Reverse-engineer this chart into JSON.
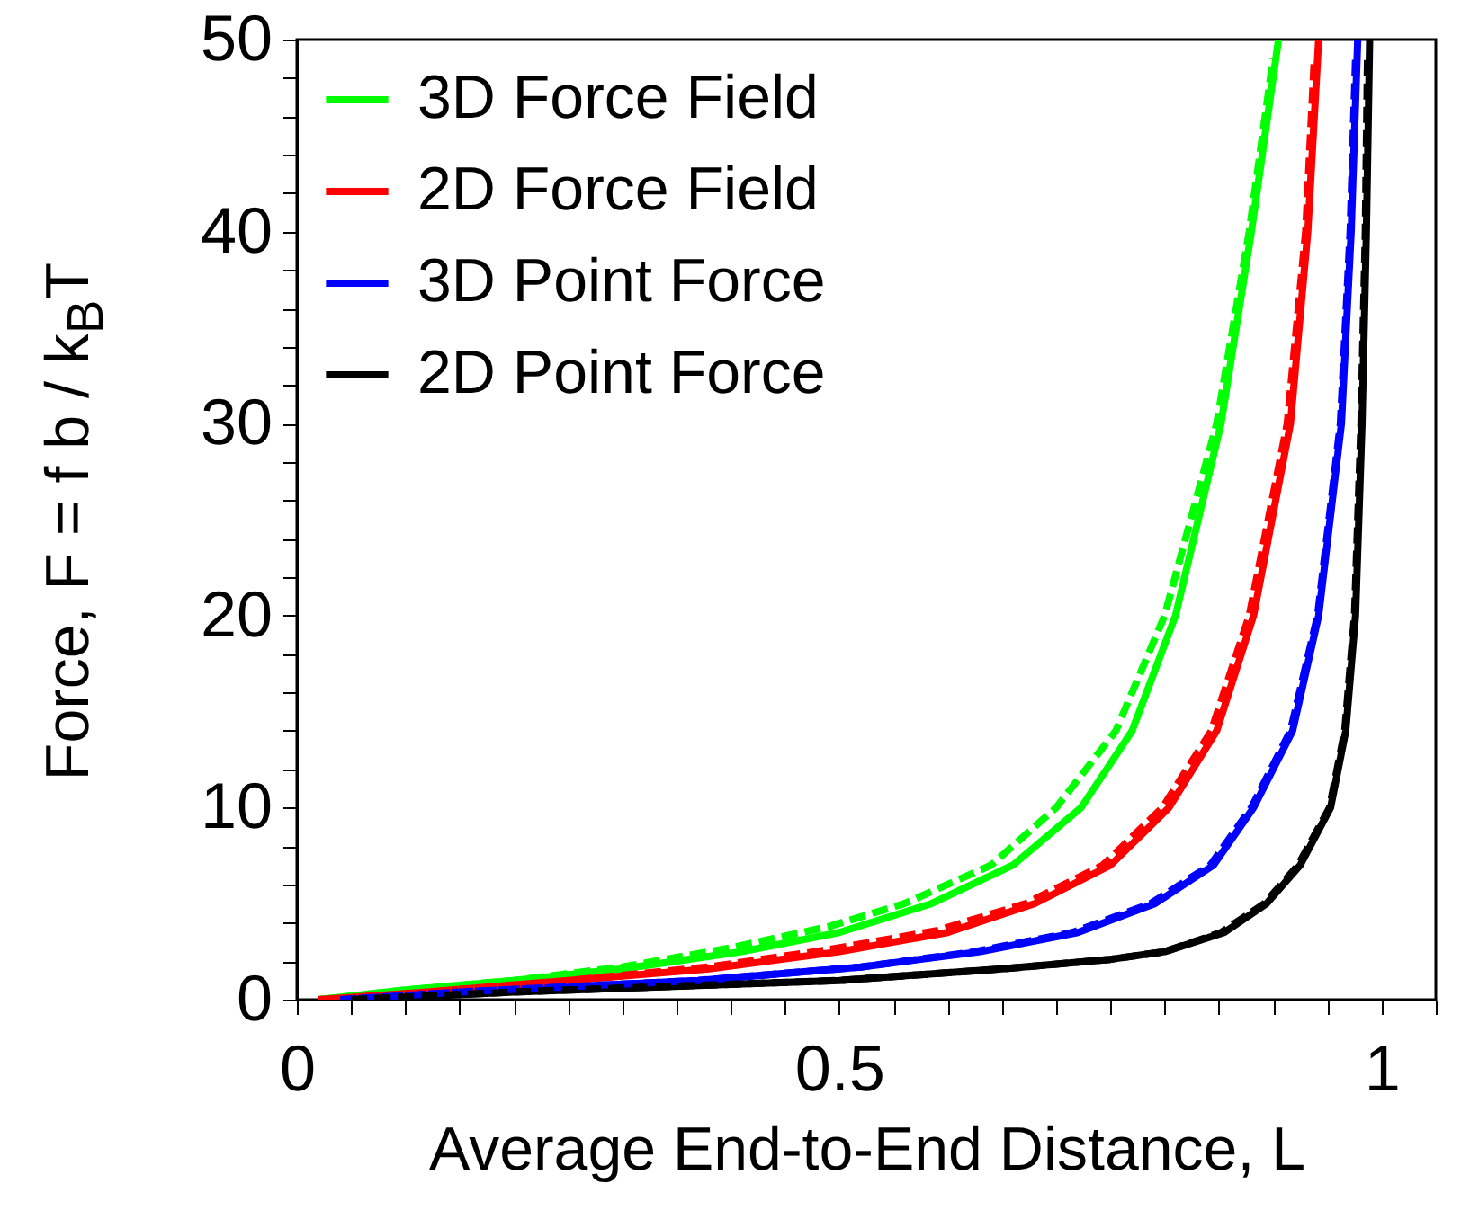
{
  "chart_data": {
    "type": "line",
    "xlabel": "Average End-to-End Distance, L",
    "ylabel": "Force, F = f b / k$_{B}$T",
    "xlim": [
      0,
      1.05
    ],
    "ylim": [
      0,
      50
    ],
    "xticks": [
      0,
      {
        "value": 0.05,
        "label": null
      },
      {
        "value": 0.1,
        "label": null
      },
      {
        "value": 0.15,
        "label": null
      },
      {
        "value": 0.2,
        "label": null
      },
      {
        "value": 0.25,
        "label": null
      },
      {
        "value": 0.3,
        "label": null
      },
      {
        "value": 0.35,
        "label": null
      },
      {
        "value": 0.4,
        "label": null
      },
      {
        "value": 0.45,
        "label": null
      },
      0.5,
      {
        "value": 0.55,
        "label": null
      },
      {
        "value": 0.6,
        "label": null
      },
      {
        "value": 0.65,
        "label": null
      },
      {
        "value": 0.7,
        "label": null
      },
      {
        "value": 0.75,
        "label": null
      },
      {
        "value": 0.8,
        "label": null
      },
      {
        "value": 0.85,
        "label": null
      },
      {
        "value": 0.9,
        "label": null
      },
      {
        "value": 0.95,
        "label": null
      },
      1,
      {
        "value": 1.05,
        "label": null
      }
    ],
    "yticks": [
      0,
      {
        "value": 2,
        "label": null
      },
      {
        "value": 4,
        "label": null
      },
      {
        "value": 6,
        "label": null
      },
      {
        "value": 8,
        "label": null
      },
      10,
      {
        "value": 12,
        "label": null
      },
      {
        "value": 14,
        "label": null
      },
      {
        "value": 16,
        "label": null
      },
      {
        "value": 18,
        "label": null
      },
      20,
      {
        "value": 22,
        "label": null
      },
      {
        "value": 24,
        "label": null
      },
      {
        "value": 26,
        "label": null
      },
      {
        "value": 28,
        "label": null
      },
      30,
      {
        "value": 32,
        "label": null
      },
      {
        "value": 34,
        "label": null
      },
      {
        "value": 36,
        "label": null
      },
      {
        "value": 38,
        "label": null
      },
      40,
      {
        "value": 42,
        "label": null
      },
      {
        "value": 44,
        "label": null
      },
      {
        "value": 46,
        "label": null
      },
      {
        "value": 48,
        "label": null
      },
      50
    ],
    "grid": false,
    "legend": "top left",
    "series": [
      {
        "name": "3D Force Field",
        "color": "#00ff00",
        "line_style": "solid",
        "x": [
          0.02,
          0.1,
          0.2,
          0.3,
          0.41,
          0.5,
          0.585,
          0.66,
          0.723,
          0.77,
          0.81,
          0.852,
          0.88,
          0.905
        ],
        "values": [
          0,
          0.5,
          1,
          1.6,
          2.5,
          3.5,
          5,
          7,
          10,
          14,
          20,
          30,
          40,
          50
        ]
      },
      {
        "name": "2D Force Field",
        "color": "#ff0000",
        "line_style": "solid",
        "x": [
          0.02,
          0.12,
          0.25,
          0.38,
          0.5,
          0.6,
          0.68,
          0.75,
          0.804,
          0.848,
          0.882,
          0.916,
          0.932,
          0.942
        ],
        "values": [
          0,
          0.4,
          1,
          1.6,
          2.5,
          3.5,
          5,
          7,
          10,
          14,
          20,
          30,
          40,
          50
        ]
      },
      {
        "name": "3D Point Force",
        "color": "#0000ff",
        "line_style": "solid",
        "x": [
          0.04,
          0.15,
          0.37,
          0.52,
          0.63,
          0.72,
          0.791,
          0.845,
          0.882,
          0.918,
          0.942,
          0.963,
          0.972,
          0.978
        ],
        "values": [
          0,
          0.4,
          1,
          1.7,
          2.5,
          3.5,
          5,
          7,
          10,
          14,
          20,
          30,
          40,
          50
        ]
      },
      {
        "name": "2D Point Force",
        "color": "#000000",
        "line_style": "solid",
        "x": [
          0.05,
          0.2,
          0.5,
          0.65,
          0.75,
          0.8,
          0.855,
          0.894,
          0.925,
          0.953,
          0.967,
          0.976,
          0.982,
          0.986,
          0.989
        ],
        "values": [
          0,
          0.4,
          1,
          1.6,
          2.1,
          2.5,
          3.5,
          5,
          7,
          10,
          14,
          20,
          30,
          40,
          50
        ]
      },
      {
        "color": "#00ff00",
        "line_style": "dashed",
        "x": [
          0.02,
          0.1,
          0.2,
          0.3,
          0.4,
          0.49,
          0.56,
          0.64,
          0.7,
          0.755,
          0.8,
          0.848,
          0.878,
          0.9
        ],
        "values": [
          0,
          0.5,
          1,
          1.7,
          2.7,
          3.8,
          5,
          7,
          10,
          14,
          20,
          30,
          40,
          49
        ]
      },
      {
        "color": "#ff0000",
        "line_style": "dashed",
        "x": [
          0.02,
          0.12,
          0.25,
          0.38,
          0.49,
          0.59,
          0.672,
          0.743,
          0.798,
          0.843,
          0.878,
          0.913,
          0.93,
          0.938
        ],
        "values": [
          0,
          0.4,
          1,
          1.7,
          2.6,
          3.6,
          5,
          7,
          10,
          14,
          20,
          30,
          40,
          49
        ]
      },
      {
        "color": "#0000ff",
        "line_style": "dashed",
        "x": [
          0.04,
          0.15,
          0.37,
          0.52,
          0.625,
          0.715,
          0.787,
          0.842,
          0.88,
          0.916,
          0.941,
          0.962,
          0.971,
          0.976
        ],
        "values": [
          0,
          0.4,
          1,
          1.7,
          2.5,
          3.5,
          5,
          7,
          10,
          14,
          20,
          30,
          40,
          49
        ]
      },
      {
        "color": "#000000",
        "line_style": "dashed",
        "x": [
          0.05,
          0.2,
          0.5,
          0.65,
          0.75,
          0.8,
          0.852,
          0.892,
          0.923,
          0.952,
          0.966,
          0.975,
          0.981,
          0.985,
          0.987
        ],
        "values": [
          0,
          0.4,
          1,
          1.6,
          2.1,
          2.5,
          3.5,
          5,
          7,
          10,
          14,
          20,
          30,
          40,
          49
        ]
      }
    ]
  }
}
